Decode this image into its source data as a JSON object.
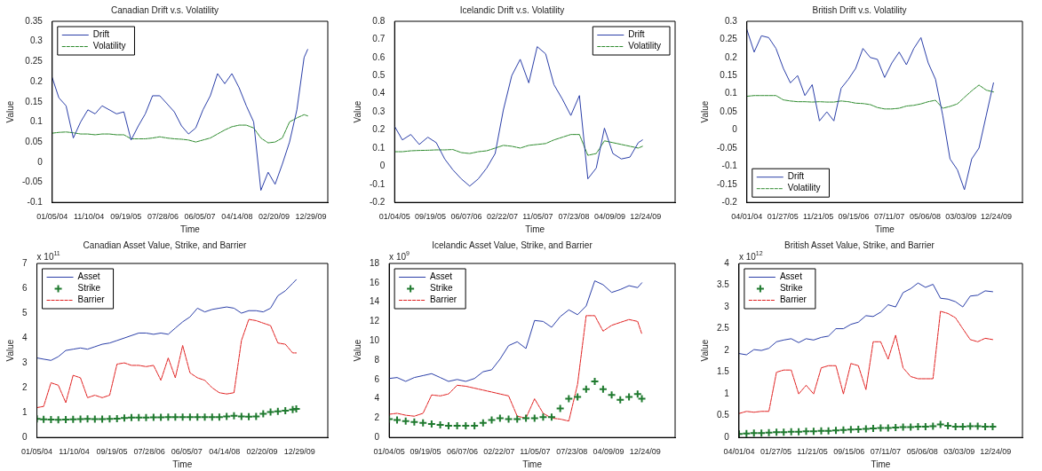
{
  "chart_data": [
    {
      "type": "line",
      "title": "Canadian Drift v.s. Volatility",
      "xlabel": "Time",
      "ylabel": "Value",
      "legend": "top left",
      "x": [
        "2004-01-05",
        "2004-03",
        "2004-05",
        "2004-07",
        "2004-09",
        "2004-11",
        "2005-01",
        "2005-03",
        "2005-05",
        "2005-07",
        "2005-09",
        "2005-11",
        "2006-01",
        "2006-03",
        "2006-05",
        "2006-07",
        "2006-09",
        "2006-11",
        "2007-01",
        "2007-03",
        "2007-05",
        "2007-07",
        "2007-09",
        "2007-11",
        "2008-01",
        "2008-03",
        "2008-05",
        "2008-07",
        "2008-09",
        "2008-11",
        "2009-01",
        "2009-03",
        "2009-05",
        "2009-07",
        "2009-09",
        "2009-11",
        "2009-12"
      ],
      "xlim": [
        "2004-01-05",
        "2010-05-20"
      ],
      "xticks": [
        {
          "value": "2004-01-05",
          "label": "01/05/04"
        },
        {
          "value": "2004-11-10",
          "label": "11/10/04"
        },
        {
          "value": "2005-09-19",
          "label": "09/19/05"
        },
        {
          "value": "2006-07-28",
          "label": "07/28/06"
        },
        {
          "value": "2007-06-05",
          "label": "06/05/07"
        },
        {
          "value": "2008-04-14",
          "label": "04/14/08"
        },
        {
          "value": "2009-02-20",
          "label": "02/20/09"
        },
        {
          "value": "2009-12-29",
          "label": "12/29/09"
        }
      ],
      "ylim": [
        -0.1,
        0.35
      ],
      "yticks": [
        -0.1,
        -0.05,
        0,
        0.05,
        0.1,
        0.15,
        0.2,
        0.25,
        0.3,
        0.35
      ],
      "series": [
        {
          "name": "Drift",
          "color": "#2b3fa8",
          "values": [
            0.21,
            0.16,
            0.14,
            0.06,
            0.1,
            0.13,
            0.12,
            0.14,
            0.13,
            0.12,
            0.125,
            0.055,
            0.09,
            0.12,
            0.165,
            0.165,
            0.145,
            0.125,
            0.09,
            0.07,
            0.085,
            0.13,
            0.165,
            0.22,
            0.195,
            0.22,
            0.185,
            0.14,
            0.1,
            -0.07,
            -0.025,
            -0.055,
            -0.005,
            0.05,
            0.13,
            0.26,
            0.28
          ]
        },
        {
          "name": "Volatility",
          "color": "#2e8b2e",
          "line_style": "dashed",
          "values": [
            0.072,
            0.074,
            0.075,
            0.073,
            0.07,
            0.07,
            0.068,
            0.07,
            0.07,
            0.068,
            0.068,
            0.058,
            0.058,
            0.058,
            0.06,
            0.063,
            0.06,
            0.058,
            0.057,
            0.055,
            0.05,
            0.055,
            0.06,
            0.07,
            0.08,
            0.088,
            0.092,
            0.092,
            0.085,
            0.06,
            0.048,
            0.05,
            0.06,
            0.1,
            0.11,
            0.118,
            0.115
          ]
        }
      ]
    },
    {
      "type": "line",
      "title": "Icelandic Drift v.s. Volatility",
      "xlabel": "Time",
      "ylabel": "Value",
      "legend": "top right",
      "x": [
        "2005-01-04",
        "2005-03",
        "2005-05",
        "2005-07",
        "2005-09",
        "2005-11",
        "2006-01",
        "2006-03",
        "2006-05",
        "2006-07",
        "2006-09",
        "2006-11",
        "2007-01",
        "2007-03",
        "2007-05",
        "2007-07",
        "2007-09",
        "2007-11",
        "2008-01",
        "2008-03",
        "2008-05",
        "2008-07",
        "2008-09",
        "2008-11",
        "2009-01",
        "2009-03",
        "2009-05",
        "2009-07",
        "2009-09",
        "2009-11",
        "2009-12"
      ],
      "xlim": [
        "2005-01-04",
        "2010-07-25"
      ],
      "xticks": [
        {
          "value": "2005-01-04",
          "label": "01/04/05"
        },
        {
          "value": "2005-09-19",
          "label": "09/19/05"
        },
        {
          "value": "2006-06-07",
          "label": "06/07/06"
        },
        {
          "value": "2007-02-22",
          "label": "02/22/07"
        },
        {
          "value": "2007-11-05",
          "label": "11/05/07"
        },
        {
          "value": "2008-07-23",
          "label": "07/23/08"
        },
        {
          "value": "2009-04-09",
          "label": "04/09/09"
        },
        {
          "value": "2009-12-24",
          "label": "12/24/09"
        }
      ],
      "ylim": [
        -0.2,
        0.8
      ],
      "yticks": [
        -0.2,
        -0.1,
        0,
        0.1,
        0.2,
        0.3,
        0.4,
        0.5,
        0.6,
        0.7,
        0.8
      ],
      "series": [
        {
          "name": "Drift",
          "color": "#2b3fa8",
          "values": [
            0.22,
            0.145,
            0.175,
            0.12,
            0.16,
            0.13,
            0.04,
            -0.02,
            -0.07,
            -0.11,
            -0.07,
            -0.01,
            0.07,
            0.31,
            0.5,
            0.59,
            0.46,
            0.66,
            0.62,
            0.45,
            0.37,
            0.28,
            0.39,
            -0.07,
            -0.01,
            0.21,
            0.07,
            0.04,
            0.05,
            0.13,
            0.145
          ]
        },
        {
          "name": "Volatility",
          "color": "#2e8b2e",
          "line_style": "dashed",
          "values": [
            0.08,
            0.08,
            0.085,
            0.087,
            0.088,
            0.09,
            0.09,
            0.092,
            0.075,
            0.07,
            0.08,
            0.085,
            0.1,
            0.115,
            0.11,
            0.1,
            0.115,
            0.12,
            0.125,
            0.145,
            0.16,
            0.175,
            0.175,
            0.06,
            0.07,
            0.14,
            0.13,
            0.12,
            0.11,
            0.1,
            0.11
          ]
        }
      ]
    },
    {
      "type": "line",
      "title": "British Drift v.s. Volatility",
      "xlabel": "Time",
      "ylabel": "Value",
      "legend": "bottom left",
      "x": [
        "2004-04",
        "2004-06",
        "2004-08",
        "2004-10",
        "2004-12",
        "2005-02",
        "2005-04",
        "2005-06",
        "2005-08",
        "2005-10",
        "2005-12",
        "2006-02",
        "2006-04",
        "2006-06",
        "2006-08",
        "2006-10",
        "2006-12",
        "2007-02",
        "2007-04",
        "2007-06",
        "2007-08",
        "2007-10",
        "2007-12",
        "2008-02",
        "2008-04",
        "2008-06",
        "2008-08",
        "2008-10",
        "2008-12",
        "2009-02",
        "2009-04",
        "2009-06",
        "2009-08",
        "2009-10",
        "2009-12"
      ],
      "xlim": [
        "2004-04-01",
        "2010-08-01"
      ],
      "xticks": [
        {
          "value": "2004-04-01",
          "label": "04/01/04"
        },
        {
          "value": "2005-01-27",
          "label": "01/27/05"
        },
        {
          "value": "2005-11-21",
          "label": "11/21/05"
        },
        {
          "value": "2006-09-15",
          "label": "09/15/06"
        },
        {
          "value": "2007-07-11",
          "label": "07/11/07"
        },
        {
          "value": "2008-05-06",
          "label": "05/06/08"
        },
        {
          "value": "2009-03-03",
          "label": "03/03/09"
        },
        {
          "value": "2009-12-24",
          "label": "12/24/09"
        }
      ],
      "ylim": [
        -0.2,
        0.3
      ],
      "yticks": [
        -0.2,
        -0.15,
        -0.1,
        -0.05,
        0,
        0.05,
        0.1,
        0.15,
        0.2,
        0.25,
        0.3
      ],
      "series": [
        {
          "name": "Drift",
          "color": "#2b3fa8",
          "values": [
            0.277,
            0.215,
            0.26,
            0.255,
            0.225,
            0.17,
            0.13,
            0.15,
            0.095,
            0.125,
            0.025,
            0.05,
            0.025,
            0.115,
            0.14,
            0.17,
            0.225,
            0.2,
            0.195,
            0.145,
            0.185,
            0.215,
            0.18,
            0.225,
            0.255,
            0.185,
            0.14,
            0.04,
            -0.08,
            -0.11,
            -0.165,
            -0.08,
            -0.05,
            0.04,
            0.13
          ]
        },
        {
          "name": "Volatility",
          "color": "#2e8b2e",
          "line_style": "dashed",
          "values": [
            0.093,
            0.095,
            0.095,
            0.095,
            0.095,
            0.083,
            0.08,
            0.078,
            0.078,
            0.077,
            0.078,
            0.077,
            0.077,
            0.08,
            0.078,
            0.074,
            0.073,
            0.07,
            0.062,
            0.058,
            0.058,
            0.06,
            0.066,
            0.068,
            0.072,
            0.078,
            0.082,
            0.06,
            0.065,
            0.072,
            0.09,
            0.108,
            0.124,
            0.11,
            0.105
          ]
        }
      ]
    },
    {
      "type": "line",
      "title": "Canadian Asset Value, Strike, and Barrier",
      "xlabel": "Time",
      "ylabel": "Value",
      "legend": "top left",
      "annotations": [
        "x 10$^{11}$"
      ],
      "x": [
        "2004-01-05",
        "2004-03",
        "2004-05",
        "2004-07",
        "2004-09",
        "2004-11",
        "2005-01",
        "2005-03",
        "2005-05",
        "2005-07",
        "2005-09",
        "2005-11",
        "2006-01",
        "2006-03",
        "2006-05",
        "2006-07",
        "2006-09",
        "2006-11",
        "2007-01",
        "2007-03",
        "2007-05",
        "2007-07",
        "2007-09",
        "2007-11",
        "2008-01",
        "2008-03",
        "2008-05",
        "2008-07",
        "2008-09",
        "2008-11",
        "2009-01",
        "2009-03",
        "2009-05",
        "2009-07",
        "2009-09",
        "2009-11",
        "2009-12"
      ],
      "xlim": [
        "2004-01-05",
        "2010-08-20"
      ],
      "xticks": [
        {
          "value": "2004-01-05",
          "label": "01/05/04"
        },
        {
          "value": "2004-11-10",
          "label": "11/10/04"
        },
        {
          "value": "2005-09-19",
          "label": "09/19/05"
        },
        {
          "value": "2006-07-28",
          "label": "07/28/06"
        },
        {
          "value": "2007-06-05",
          "label": "06/05/07"
        },
        {
          "value": "2008-04-14",
          "label": "04/14/08"
        },
        {
          "value": "2009-02-20",
          "label": "02/20/09"
        },
        {
          "value": "2009-12-29",
          "label": "12/29/09"
        }
      ],
      "ylim": [
        0,
        7
      ],
      "yticks": [
        0,
        1,
        2,
        3,
        4,
        5,
        6,
        7
      ],
      "series": [
        {
          "name": "Asset",
          "color": "#2b3fa8",
          "values": [
            3.2,
            3.15,
            3.1,
            3.25,
            3.5,
            3.55,
            3.6,
            3.55,
            3.65,
            3.75,
            3.8,
            3.9,
            4.0,
            4.1,
            4.2,
            4.2,
            4.15,
            4.2,
            4.15,
            4.4,
            4.65,
            4.85,
            5.2,
            5.05,
            5.15,
            5.2,
            5.25,
            5.2,
            5.0,
            5.1,
            5.1,
            5.05,
            5.2,
            5.7,
            5.9,
            6.2,
            6.35
          ]
        },
        {
          "name": "Strike",
          "color": "#1f7a2f",
          "type": "scatter",
          "marker": "cross",
          "values": [
            0.75,
            0.73,
            0.72,
            0.71,
            0.72,
            0.73,
            0.74,
            0.75,
            0.74,
            0.74,
            0.75,
            0.76,
            0.78,
            0.8,
            0.8,
            0.8,
            0.81,
            0.81,
            0.82,
            0.82,
            0.82,
            0.82,
            0.82,
            0.82,
            0.82,
            0.82,
            0.85,
            0.87,
            0.85,
            0.84,
            0.85,
            0.95,
            1.02,
            1.05,
            1.08,
            1.12,
            1.15
          ]
        },
        {
          "name": "Barrier",
          "color": "#e02020",
          "line_style": "dashed",
          "values": [
            1.2,
            1.25,
            2.2,
            2.1,
            1.4,
            2.5,
            2.4,
            1.6,
            1.7,
            1.6,
            1.7,
            2.95,
            3.0,
            2.9,
            2.9,
            2.85,
            2.9,
            2.3,
            3.2,
            2.4,
            3.7,
            2.6,
            2.4,
            2.3,
            2.0,
            1.8,
            1.75,
            1.8,
            3.9,
            4.75,
            4.7,
            4.6,
            4.5,
            3.8,
            3.75,
            3.4,
            3.4
          ]
        }
      ]
    },
    {
      "type": "line",
      "title": "Icelandic Asset Value, Strike, and Barrier",
      "xlabel": "Time",
      "ylabel": "Value",
      "legend": "top left",
      "annotations": [
        "x 10$^{9}$"
      ],
      "x": [
        "2005-01-04",
        "2005-03",
        "2005-05",
        "2005-07",
        "2005-09",
        "2005-11",
        "2006-01",
        "2006-03",
        "2006-05",
        "2006-07",
        "2006-09",
        "2006-11",
        "2007-01",
        "2007-03",
        "2007-05",
        "2007-07",
        "2007-09",
        "2007-11",
        "2008-01",
        "2008-03",
        "2008-05",
        "2008-07",
        "2008-09",
        "2008-11",
        "2009-01",
        "2009-03",
        "2009-05",
        "2009-07",
        "2009-09",
        "2009-11",
        "2009-12"
      ],
      "xlim": [
        "2005-01-04",
        "2010-07-25"
      ],
      "xticks": [
        {
          "value": "2005-01-04",
          "label": "01/04/05"
        },
        {
          "value": "2005-09-19",
          "label": "09/19/05"
        },
        {
          "value": "2006-06-07",
          "label": "06/07/06"
        },
        {
          "value": "2007-02-22",
          "label": "02/22/07"
        },
        {
          "value": "2007-11-05",
          "label": "11/05/07"
        },
        {
          "value": "2008-07-23",
          "label": "07/23/08"
        },
        {
          "value": "2009-04-09",
          "label": "04/09/09"
        },
        {
          "value": "2009-12-24",
          "label": "12/24/09"
        }
      ],
      "ylim": [
        0,
        18
      ],
      "yticks": [
        0,
        2,
        4,
        6,
        8,
        10,
        12,
        14,
        16,
        18
      ],
      "series": [
        {
          "name": "Asset",
          "color": "#2b3fa8",
          "values": [
            6.1,
            6.2,
            5.8,
            6.2,
            6.4,
            6.6,
            6.2,
            5.8,
            6.0,
            5.8,
            6.1,
            6.8,
            7.0,
            8.1,
            9.5,
            9.9,
            9.2,
            12.1,
            12.0,
            11.4,
            12.5,
            13.2,
            12.7,
            13.6,
            16.2,
            15.8,
            15.0,
            15.3,
            15.7,
            15.5,
            16.0
          ]
        },
        {
          "name": "Strike",
          "color": "#1f7a2f",
          "type": "scatter",
          "marker": "cross",
          "values": [
            1.9,
            1.8,
            1.7,
            1.6,
            1.5,
            1.4,
            1.3,
            1.2,
            1.2,
            1.2,
            1.2,
            1.5,
            1.8,
            2.0,
            1.9,
            1.9,
            2.0,
            2.0,
            2.1,
            2.1,
            3.0,
            4.0,
            4.2,
            5.0,
            5.8,
            5.0,
            4.4,
            3.9,
            4.2,
            4.5,
            4.0
          ]
        },
        {
          "name": "Barrier",
          "color": "#e02020",
          "line_style": "dashed",
          "values": [
            2.4,
            2.5,
            2.3,
            2.2,
            2.5,
            4.4,
            4.3,
            4.5,
            5.4,
            5.3,
            5.1,
            4.9,
            4.7,
            4.5,
            4.3,
            2.2,
            2.0,
            4.0,
            2.5,
            2.0,
            1.9,
            1.7,
            5.5,
            12.6,
            12.6,
            11.0,
            11.6,
            11.9,
            12.2,
            12.0,
            10.7
          ]
        }
      ]
    },
    {
      "type": "line",
      "title": "British Asset Value, Strike, and Barrier",
      "xlabel": "Time",
      "ylabel": "Value",
      "legend": "top left",
      "annotations": [
        "x 10$^{12}$"
      ],
      "x": [
        "2004-04",
        "2004-06",
        "2004-08",
        "2004-10",
        "2004-12",
        "2005-02",
        "2005-04",
        "2005-06",
        "2005-08",
        "2005-10",
        "2005-12",
        "2006-02",
        "2006-04",
        "2006-06",
        "2006-08",
        "2006-10",
        "2006-12",
        "2007-02",
        "2007-04",
        "2007-06",
        "2007-08",
        "2007-10",
        "2007-12",
        "2008-02",
        "2008-04",
        "2008-06",
        "2008-08",
        "2008-10",
        "2008-12",
        "2009-02",
        "2009-04",
        "2009-06",
        "2009-08",
        "2009-10",
        "2009-12"
      ],
      "xlim": [
        "2004-04-01",
        "2010-08-01"
      ],
      "xticks": [
        {
          "value": "2004-04-01",
          "label": "04/01/04"
        },
        {
          "value": "2005-01-27",
          "label": "01/27/05"
        },
        {
          "value": "2005-11-21",
          "label": "11/21/05"
        },
        {
          "value": "2006-09-15",
          "label": "09/15/06"
        },
        {
          "value": "2007-07-11",
          "label": "07/11/07"
        },
        {
          "value": "2008-05-06",
          "label": "05/06/08"
        },
        {
          "value": "2009-03-03",
          "label": "03/03/09"
        },
        {
          "value": "2009-12-24",
          "label": "12/24/09"
        }
      ],
      "ylim": [
        0,
        4
      ],
      "yticks": [
        0,
        0.5,
        1,
        1.5,
        2,
        2.5,
        3,
        3.5,
        4
      ],
      "series": [
        {
          "name": "Asset",
          "color": "#2b3fa8",
          "values": [
            1.93,
            1.9,
            2.02,
            2.0,
            2.05,
            2.2,
            2.24,
            2.27,
            2.18,
            2.27,
            2.24,
            2.3,
            2.33,
            2.5,
            2.5,
            2.6,
            2.65,
            2.8,
            2.78,
            2.88,
            3.05,
            3.0,
            3.33,
            3.42,
            3.55,
            3.45,
            3.52,
            3.2,
            3.18,
            3.12,
            3.0,
            3.25,
            3.27,
            3.37,
            3.35
          ]
        },
        {
          "name": "Strike",
          "color": "#1f7a2f",
          "type": "scatter",
          "marker": "cross",
          "values": [
            0.08,
            0.09,
            0.1,
            0.1,
            0.11,
            0.12,
            0.12,
            0.13,
            0.13,
            0.14,
            0.14,
            0.15,
            0.15,
            0.16,
            0.17,
            0.18,
            0.19,
            0.2,
            0.21,
            0.22,
            0.22,
            0.23,
            0.24,
            0.24,
            0.25,
            0.25,
            0.26,
            0.3,
            0.27,
            0.25,
            0.25,
            0.26,
            0.26,
            0.25,
            0.25
          ]
        },
        {
          "name": "Barrier",
          "color": "#e02020",
          "line_style": "dashed",
          "values": [
            0.55,
            0.6,
            0.58,
            0.6,
            0.6,
            1.5,
            1.55,
            1.55,
            1.0,
            1.2,
            1.0,
            1.6,
            1.65,
            1.65,
            1.0,
            1.7,
            1.65,
            1.1,
            2.2,
            2.2,
            1.8,
            2.35,
            1.6,
            1.4,
            1.35,
            1.35,
            1.35,
            2.9,
            2.85,
            2.75,
            2.5,
            2.25,
            2.2,
            2.28,
            2.25
          ]
        }
      ]
    }
  ]
}
